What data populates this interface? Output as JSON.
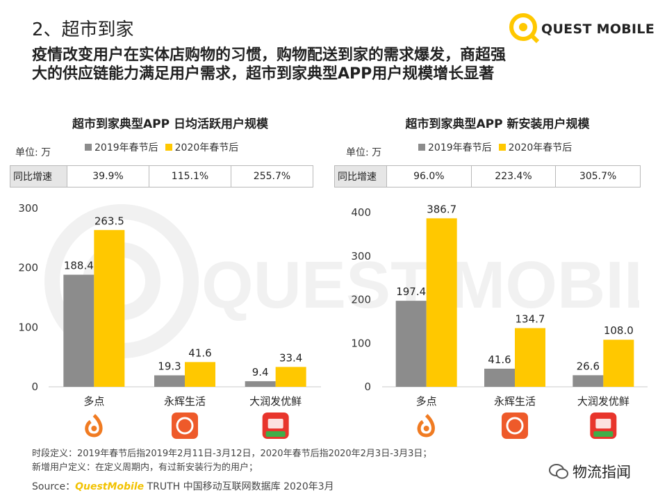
{
  "header": {
    "section_title": "2、超市到家",
    "headline": "疫情改变用户在实体店购物的习惯，购物配送到家的需求爆发，商超强大的供应链能力满足用户需求，超市到家典型APP用户规模增长显著",
    "logo_text": "QUEST MOBILE",
    "watermark_text": "QUEST MOBILE"
  },
  "colors": {
    "series_2019": "#8c8c8c",
    "series_2020": "#ffc800",
    "accent": "#f2c200"
  },
  "chart_data": [
    {
      "type": "bar",
      "title": "超市到家典型APP 日均活跃用户规模",
      "unit": "单位: 万",
      "categories": [
        "多点",
        "永辉生活",
        "大润发优鲜"
      ],
      "series": [
        {
          "name": "2019年春节后",
          "values": [
            188.4,
            19.3,
            9.4
          ]
        },
        {
          "name": "2020年春节后",
          "values": [
            263.5,
            41.6,
            33.4
          ]
        }
      ],
      "yoy_label": "同比增速",
      "yoy": [
        "39.9%",
        "115.1%",
        "255.7%"
      ],
      "ylim": [
        0,
        300
      ],
      "yticks": [
        0,
        100,
        200,
        300
      ],
      "legend_position": "top"
    },
    {
      "type": "bar",
      "title": "超市到家典型APP 新安装用户规模",
      "unit": "单位: 万",
      "categories": [
        "多点",
        "永辉生活",
        "大润发优鲜"
      ],
      "series": [
        {
          "name": "2019年春节后",
          "values": [
            197.4,
            41.6,
            26.6
          ]
        },
        {
          "name": "2020年春节后",
          "values": [
            386.7,
            134.7,
            108.0
          ]
        }
      ],
      "yoy_label": "同比增速",
      "yoy": [
        "96.0%",
        "223.4%",
        "305.7%"
      ],
      "ylim": [
        0,
        400
      ],
      "yticks": [
        0,
        100,
        200,
        300,
        400
      ],
      "legend_position": "top"
    }
  ],
  "app_icons": [
    "dmall-icon",
    "yonghui-icon",
    "rt-mart-icon"
  ],
  "footer": {
    "note1": "时段定义：2019年春节后指2019年2月11日-3月12日，2020年春节后指2020年2月3日-3月3日；",
    "note2": "新增用户定义：在定义周期内，有过新安装行为的用户；",
    "source_prefix": "Source：",
    "source_brand": "QuestMobile",
    "source_rest": " TRUTH 中国移动互联网数据库 2020年3月",
    "wechat_account": "物流指闻"
  }
}
